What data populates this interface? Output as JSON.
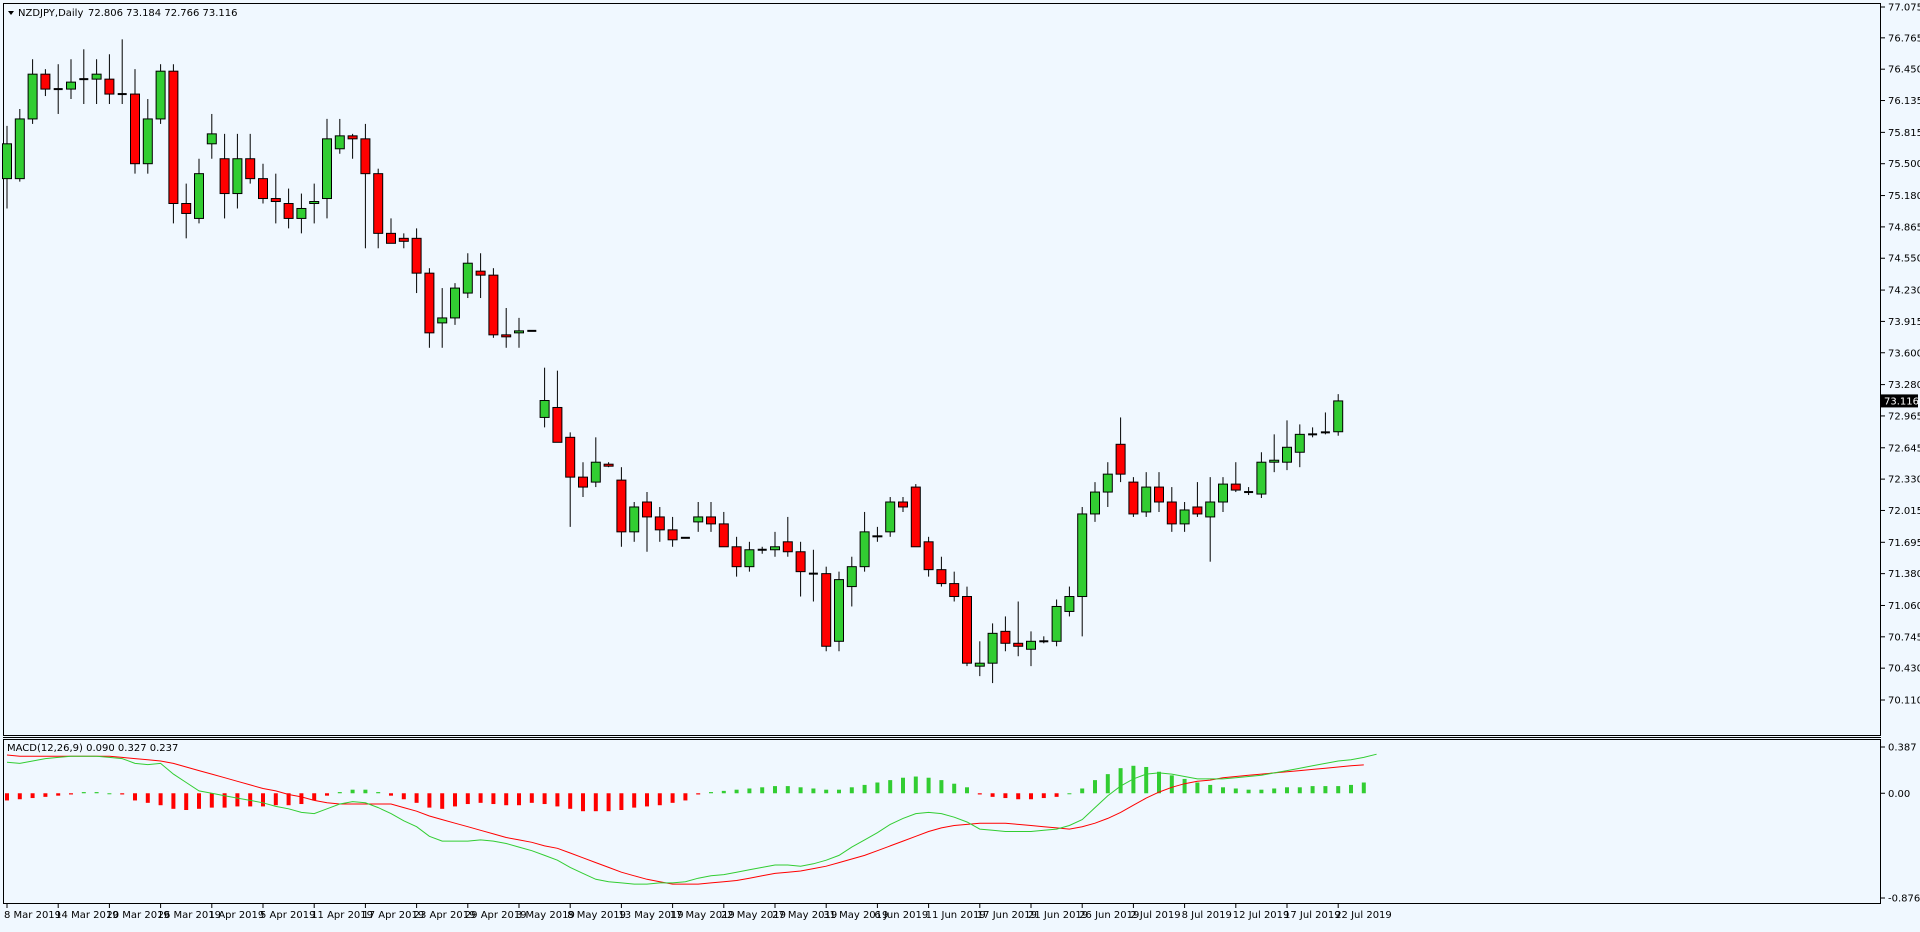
{
  "header": {
    "symbol": "NZDJPY,Daily",
    "ohlc": "72.806 73.184 72.766 73.116"
  },
  "macd_header": {
    "label": "MACD(12,26,9) 0.090 0.327 0.237"
  },
  "colors": {
    "background": "#f0f8ff",
    "bull": "#32cd32",
    "bear": "#ff0000",
    "wick": "#000000",
    "macd_line": "#32cd32",
    "signal_line": "#ff0000",
    "last_price_bg": "#000000"
  },
  "chart_data": [
    {
      "type": "candlestick",
      "title": "NZDJPY,Daily",
      "ylim": [
        70.11,
        77.075
      ],
      "y_ticks": [
        "77.075",
        "76.765",
        "76.450",
        "76.135",
        "75.815",
        "75.500",
        "75.180",
        "74.865",
        "74.550",
        "74.230",
        "73.915",
        "73.600",
        "73.280",
        "72.965",
        "72.645",
        "72.330",
        "72.015",
        "71.695",
        "71.380",
        "71.060",
        "70.745",
        "70.430",
        "70.110"
      ],
      "current_price": "73.116",
      "x_labels": [
        {
          "label": "8 Mar 2019",
          "index": 0
        },
        {
          "label": "14 Mar 2019",
          "index": 4
        },
        {
          "label": "20 Mar 2019",
          "index": 8
        },
        {
          "label": "26 Mar 2019",
          "index": 12
        },
        {
          "label": "1 Apr 2019",
          "index": 16
        },
        {
          "label": "5 Apr 2019",
          "index": 20
        },
        {
          "label": "11 Apr 2019",
          "index": 24
        },
        {
          "label": "17 Apr 2019",
          "index": 28
        },
        {
          "label": "23 Apr 2019",
          "index": 32
        },
        {
          "label": "29 Apr 2019",
          "index": 36
        },
        {
          "label": "3 May 2019",
          "index": 40
        },
        {
          "label": "8 May 2019",
          "index": 44
        },
        {
          "label": "13 May 2019",
          "index": 48
        },
        {
          "label": "17 May 2019",
          "index": 52
        },
        {
          "label": "22 May 2019",
          "index": 56
        },
        {
          "label": "27 May 2019",
          "index": 60
        },
        {
          "label": "31 May 2019",
          "index": 64
        },
        {
          "label": "6 Jun 2019",
          "index": 68
        },
        {
          "label": "11 Jun 2019",
          "index": 72
        },
        {
          "label": "17 Jun 2019",
          "index": 76
        },
        {
          "label": "21 Jun 2019",
          "index": 80
        },
        {
          "label": "26 Jun 2019",
          "index": 84
        },
        {
          "label": "2 Jul 2019",
          "index": 88
        },
        {
          "label": "8 Jul 2019",
          "index": 92
        },
        {
          "label": "12 Jul 2019",
          "index": 96
        },
        {
          "label": "17 Jul 2019",
          "index": 100
        },
        {
          "label": "22 Jul 2019",
          "index": 104
        }
      ],
      "candles": [
        {
          "o": 75.35,
          "h": 75.88,
          "l": 75.05,
          "c": 75.7
        },
        {
          "o": 75.35,
          "h": 76.05,
          "l": 75.32,
          "c": 75.95
        },
        {
          "o": 75.95,
          "h": 76.55,
          "l": 75.9,
          "c": 76.4
        },
        {
          "o": 76.4,
          "h": 76.45,
          "l": 76.18,
          "c": 76.25
        },
        {
          "o": 76.25,
          "h": 76.5,
          "l": 76.0,
          "c": 76.25
        },
        {
          "o": 76.25,
          "h": 76.55,
          "l": 76.15,
          "c": 76.32
        },
        {
          "o": 76.35,
          "h": 76.65,
          "l": 76.1,
          "c": 76.35
        },
        {
          "o": 76.35,
          "h": 76.55,
          "l": 76.1,
          "c": 76.4
        },
        {
          "o": 76.35,
          "h": 76.6,
          "l": 76.1,
          "c": 76.2
        },
        {
          "o": 76.2,
          "h": 76.75,
          "l": 76.1,
          "c": 76.2
        },
        {
          "o": 76.2,
          "h": 76.45,
          "l": 75.4,
          "c": 75.5
        },
        {
          "o": 75.5,
          "h": 76.15,
          "l": 75.4,
          "c": 75.95
        },
        {
          "o": 75.95,
          "h": 76.5,
          "l": 75.9,
          "c": 76.43
        },
        {
          "o": 76.43,
          "h": 76.5,
          "l": 74.9,
          "c": 75.1
        },
        {
          "o": 75.1,
          "h": 75.3,
          "l": 74.75,
          "c": 75.0
        },
        {
          "o": 74.95,
          "h": 75.55,
          "l": 74.9,
          "c": 75.4
        },
        {
          "o": 75.7,
          "h": 76.0,
          "l": 75.55,
          "c": 75.8
        },
        {
          "o": 75.55,
          "h": 75.8,
          "l": 74.95,
          "c": 75.2
        },
        {
          "o": 75.2,
          "h": 75.8,
          "l": 75.05,
          "c": 75.55
        },
        {
          "o": 75.55,
          "h": 75.8,
          "l": 75.3,
          "c": 75.35
        },
        {
          "o": 75.35,
          "h": 75.5,
          "l": 75.1,
          "c": 75.15
        },
        {
          "o": 75.15,
          "h": 75.4,
          "l": 74.9,
          "c": 75.12
        },
        {
          "o": 75.1,
          "h": 75.25,
          "l": 74.85,
          "c": 74.95
        },
        {
          "o": 74.95,
          "h": 75.2,
          "l": 74.8,
          "c": 75.05
        },
        {
          "o": 75.1,
          "h": 75.3,
          "l": 74.9,
          "c": 75.12
        },
        {
          "o": 75.15,
          "h": 75.95,
          "l": 74.95,
          "c": 75.75
        },
        {
          "o": 75.65,
          "h": 75.95,
          "l": 75.6,
          "c": 75.78
        },
        {
          "o": 75.78,
          "h": 75.8,
          "l": 75.55,
          "c": 75.75
        },
        {
          "o": 75.75,
          "h": 75.9,
          "l": 74.65,
          "c": 75.4
        },
        {
          "o": 75.4,
          "h": 75.45,
          "l": 74.65,
          "c": 74.8
        },
        {
          "o": 74.8,
          "h": 74.95,
          "l": 74.7,
          "c": 74.7
        },
        {
          "o": 74.75,
          "h": 74.8,
          "l": 74.65,
          "c": 74.72
        },
        {
          "o": 74.75,
          "h": 74.85,
          "l": 74.2,
          "c": 74.4
        },
        {
          "o": 74.4,
          "h": 74.45,
          "l": 73.65,
          "c": 73.8
        },
        {
          "o": 73.9,
          "h": 74.25,
          "l": 73.65,
          "c": 73.95
        },
        {
          "o": 73.95,
          "h": 74.3,
          "l": 73.88,
          "c": 74.25
        },
        {
          "o": 74.2,
          "h": 74.6,
          "l": 74.15,
          "c": 74.5
        },
        {
          "o": 74.42,
          "h": 74.6,
          "l": 74.15,
          "c": 74.38
        },
        {
          "o": 74.38,
          "h": 74.45,
          "l": 73.75,
          "c": 73.78
        },
        {
          "o": 73.78,
          "h": 74.05,
          "l": 73.65,
          "c": 73.76
        },
        {
          "o": 73.8,
          "h": 73.95,
          "l": 73.65,
          "c": 73.82
        },
        {
          "o": 73.82,
          "h": 73.82,
          "l": 73.82,
          "c": 73.82
        },
        {
          "o": 72.95,
          "h": 73.45,
          "l": 72.85,
          "c": 73.12
        },
        {
          "o": 73.05,
          "h": 73.42,
          "l": 72.7,
          "c": 72.7
        },
        {
          "o": 72.75,
          "h": 72.8,
          "l": 71.85,
          "c": 72.35
        },
        {
          "o": 72.35,
          "h": 72.5,
          "l": 72.15,
          "c": 72.25
        },
        {
          "o": 72.3,
          "h": 72.75,
          "l": 72.25,
          "c": 72.5
        },
        {
          "o": 72.48,
          "h": 72.5,
          "l": 72.45,
          "c": 72.46
        },
        {
          "o": 72.32,
          "h": 72.45,
          "l": 71.65,
          "c": 71.8
        },
        {
          "o": 71.8,
          "h": 72.1,
          "l": 71.7,
          "c": 72.05
        },
        {
          "o": 72.1,
          "h": 72.2,
          "l": 71.6,
          "c": 71.95
        },
        {
          "o": 71.95,
          "h": 72.05,
          "l": 71.7,
          "c": 71.82
        },
        {
          "o": 71.82,
          "h": 71.95,
          "l": 71.65,
          "c": 71.72
        },
        {
          "o": 71.74,
          "h": 71.74,
          "l": 71.74,
          "c": 71.74
        },
        {
          "o": 71.9,
          "h": 72.1,
          "l": 71.8,
          "c": 71.95
        },
        {
          "o": 71.95,
          "h": 72.1,
          "l": 71.8,
          "c": 71.88
        },
        {
          "o": 71.88,
          "h": 72.0,
          "l": 71.65,
          "c": 71.65
        },
        {
          "o": 71.65,
          "h": 71.75,
          "l": 71.35,
          "c": 71.45
        },
        {
          "o": 71.45,
          "h": 71.7,
          "l": 71.4,
          "c": 71.62
        },
        {
          "o": 71.62,
          "h": 71.65,
          "l": 71.58,
          "c": 71.62
        },
        {
          "o": 71.62,
          "h": 71.8,
          "l": 71.55,
          "c": 71.65
        },
        {
          "o": 71.7,
          "h": 71.95,
          "l": 71.55,
          "c": 71.6
        },
        {
          "o": 71.6,
          "h": 71.7,
          "l": 71.15,
          "c": 71.4
        },
        {
          "o": 71.38,
          "h": 71.62,
          "l": 71.1,
          "c": 71.38
        },
        {
          "o": 71.38,
          "h": 71.45,
          "l": 70.6,
          "c": 70.65
        },
        {
          "o": 70.7,
          "h": 71.4,
          "l": 70.6,
          "c": 71.32
        },
        {
          "o": 71.25,
          "h": 71.55,
          "l": 71.05,
          "c": 71.45
        },
        {
          "o": 71.45,
          "h": 72.0,
          "l": 71.4,
          "c": 71.8
        },
        {
          "o": 71.75,
          "h": 71.85,
          "l": 71.7,
          "c": 71.76
        },
        {
          "o": 71.8,
          "h": 72.15,
          "l": 71.75,
          "c": 72.1
        },
        {
          "o": 72.1,
          "h": 72.15,
          "l": 72.0,
          "c": 72.05
        },
        {
          "o": 72.25,
          "h": 72.28,
          "l": 71.65,
          "c": 71.65
        },
        {
          "o": 71.7,
          "h": 71.75,
          "l": 71.35,
          "c": 71.42
        },
        {
          "o": 71.42,
          "h": 71.55,
          "l": 71.25,
          "c": 71.28
        },
        {
          "o": 71.28,
          "h": 71.4,
          "l": 71.1,
          "c": 71.15
        },
        {
          "o": 71.15,
          "h": 71.25,
          "l": 70.45,
          "c": 70.48
        },
        {
          "o": 70.45,
          "h": 70.7,
          "l": 70.35,
          "c": 70.48
        },
        {
          "o": 70.48,
          "h": 70.88,
          "l": 70.28,
          "c": 70.78
        },
        {
          "o": 70.8,
          "h": 70.95,
          "l": 70.6,
          "c": 70.68
        },
        {
          "o": 70.68,
          "h": 71.1,
          "l": 70.55,
          "c": 70.65
        },
        {
          "o": 70.62,
          "h": 70.8,
          "l": 70.45,
          "c": 70.7
        },
        {
          "o": 70.7,
          "h": 70.75,
          "l": 70.68,
          "c": 70.7
        },
        {
          "o": 70.7,
          "h": 71.12,
          "l": 70.65,
          "c": 71.05
        },
        {
          "o": 71.0,
          "h": 71.25,
          "l": 70.95,
          "c": 71.15
        },
        {
          "o": 71.15,
          "h": 72.05,
          "l": 70.75,
          "c": 71.98
        },
        {
          "o": 71.98,
          "h": 72.3,
          "l": 71.9,
          "c": 72.2
        },
        {
          "o": 72.2,
          "h": 72.5,
          "l": 72.05,
          "c": 72.38
        },
        {
          "o": 72.68,
          "h": 72.95,
          "l": 72.3,
          "c": 72.38
        },
        {
          "o": 72.3,
          "h": 72.35,
          "l": 71.95,
          "c": 71.98
        },
        {
          "o": 72.0,
          "h": 72.4,
          "l": 71.95,
          "c": 72.25
        },
        {
          "o": 72.25,
          "h": 72.4,
          "l": 72.0,
          "c": 72.1
        },
        {
          "o": 72.1,
          "h": 72.25,
          "l": 71.8,
          "c": 71.88
        },
        {
          "o": 71.88,
          "h": 72.1,
          "l": 71.8,
          "c": 72.02
        },
        {
          "o": 72.05,
          "h": 72.3,
          "l": 71.95,
          "c": 71.98
        },
        {
          "o": 71.95,
          "h": 72.35,
          "l": 71.5,
          "c": 72.1
        },
        {
          "o": 72.1,
          "h": 72.35,
          "l": 72.0,
          "c": 72.28
        },
        {
          "o": 72.28,
          "h": 72.5,
          "l": 72.2,
          "c": 72.22
        },
        {
          "o": 72.2,
          "h": 72.25,
          "l": 72.17,
          "c": 72.2
        },
        {
          "o": 72.18,
          "h": 72.6,
          "l": 72.14,
          "c": 72.5
        },
        {
          "o": 72.5,
          "h": 72.78,
          "l": 72.4,
          "c": 72.52
        },
        {
          "o": 72.5,
          "h": 72.92,
          "l": 72.42,
          "c": 72.65
        },
        {
          "o": 72.6,
          "h": 72.88,
          "l": 72.45,
          "c": 72.78
        },
        {
          "o": 72.78,
          "h": 72.85,
          "l": 72.75,
          "c": 72.78
        },
        {
          "o": 72.8,
          "h": 73.0,
          "l": 72.78,
          "c": 72.8
        },
        {
          "o": 72.806,
          "h": 73.184,
          "l": 72.766,
          "c": 73.116
        }
      ]
    },
    {
      "type": "macd",
      "title": "MACD(12,26,9) 0.090 0.327 0.237",
      "ylim": [
        -0.876,
        0.387
      ],
      "y_ticks": [
        "0.387",
        "0.00",
        "-0.876"
      ],
      "histogram": [
        -0.06,
        -0.05,
        -0.04,
        -0.03,
        -0.02,
        -0.01,
        0.01,
        0.01,
        0.0,
        -0.01,
        -0.06,
        -0.08,
        -0.1,
        -0.13,
        -0.14,
        -0.13,
        -0.12,
        -0.12,
        -0.11,
        -0.11,
        -0.11,
        -0.1,
        -0.1,
        -0.09,
        -0.06,
        -0.02,
        0.01,
        0.03,
        0.03,
        0.01,
        -0.02,
        -0.05,
        -0.08,
        -0.12,
        -0.13,
        -0.11,
        -0.09,
        -0.08,
        -0.09,
        -0.1,
        -0.1,
        -0.08,
        -0.09,
        -0.11,
        -0.13,
        -0.15,
        -0.15,
        -0.15,
        -0.14,
        -0.12,
        -0.11,
        -0.1,
        -0.08,
        -0.06,
        -0.01,
        0.01,
        0.02,
        0.03,
        0.04,
        0.05,
        0.06,
        0.06,
        0.05,
        0.04,
        0.03,
        0.03,
        0.05,
        0.07,
        0.09,
        0.11,
        0.13,
        0.14,
        0.13,
        0.11,
        0.08,
        0.05,
        -0.01,
        -0.03,
        -0.04,
        -0.05,
        -0.05,
        -0.04,
        -0.03,
        0.0,
        0.04,
        0.11,
        0.16,
        0.21,
        0.23,
        0.22,
        0.18,
        0.15,
        0.12,
        0.09,
        0.07,
        0.05,
        0.04,
        0.03,
        0.03,
        0.04,
        0.05,
        0.05,
        0.06,
        0.06,
        0.06,
        0.07,
        0.09
      ],
      "macd_line": [
        0.26,
        0.25,
        0.27,
        0.29,
        0.3,
        0.31,
        0.31,
        0.31,
        0.3,
        0.29,
        0.25,
        0.24,
        0.25,
        0.16,
        0.09,
        0.02,
        0.0,
        -0.02,
        -0.04,
        -0.06,
        -0.08,
        -0.11,
        -0.13,
        -0.16,
        -0.17,
        -0.13,
        -0.09,
        -0.07,
        -0.08,
        -0.12,
        -0.17,
        -0.23,
        -0.28,
        -0.36,
        -0.4,
        -0.4,
        -0.4,
        -0.39,
        -0.4,
        -0.42,
        -0.45,
        -0.48,
        -0.52,
        -0.56,
        -0.62,
        -0.67,
        -0.72,
        -0.74,
        -0.75,
        -0.76,
        -0.76,
        -0.75,
        -0.75,
        -0.74,
        -0.71,
        -0.69,
        -0.68,
        -0.66,
        -0.64,
        -0.62,
        -0.6,
        -0.6,
        -0.61,
        -0.59,
        -0.56,
        -0.52,
        -0.45,
        -0.39,
        -0.33,
        -0.26,
        -0.21,
        -0.17,
        -0.16,
        -0.17,
        -0.2,
        -0.24,
        -0.3,
        -0.31,
        -0.32,
        -0.32,
        -0.32,
        -0.31,
        -0.3,
        -0.27,
        -0.22,
        -0.12,
        -0.02,
        0.06,
        0.12,
        0.16,
        0.17,
        0.16,
        0.14,
        0.12,
        0.12,
        0.12,
        0.13,
        0.14,
        0.15,
        0.17,
        0.19,
        0.21,
        0.23,
        0.25,
        0.27,
        0.28,
        0.3,
        0.327
      ],
      "signal_line": [
        0.32,
        0.31,
        0.31,
        0.31,
        0.31,
        0.31,
        0.31,
        0.31,
        0.31,
        0.3,
        0.29,
        0.28,
        0.27,
        0.25,
        0.22,
        0.19,
        0.16,
        0.13,
        0.1,
        0.07,
        0.04,
        0.02,
        -0.01,
        -0.03,
        -0.06,
        -0.08,
        -0.09,
        -0.09,
        -0.09,
        -0.09,
        -0.09,
        -0.12,
        -0.15,
        -0.19,
        -0.22,
        -0.25,
        -0.28,
        -0.31,
        -0.34,
        -0.37,
        -0.39,
        -0.41,
        -0.44,
        -0.46,
        -0.5,
        -0.54,
        -0.58,
        -0.62,
        -0.66,
        -0.69,
        -0.72,
        -0.74,
        -0.76,
        -0.76,
        -0.76,
        -0.75,
        -0.74,
        -0.73,
        -0.71,
        -0.69,
        -0.67,
        -0.66,
        -0.65,
        -0.63,
        -0.61,
        -0.58,
        -0.55,
        -0.52,
        -0.48,
        -0.44,
        -0.4,
        -0.36,
        -0.32,
        -0.29,
        -0.27,
        -0.26,
        -0.25,
        -0.25,
        -0.25,
        -0.26,
        -0.27,
        -0.28,
        -0.29,
        -0.3,
        -0.28,
        -0.25,
        -0.21,
        -0.16,
        -0.1,
        -0.04,
        0.01,
        0.05,
        0.08,
        0.1,
        0.11,
        0.13,
        0.14,
        0.15,
        0.16,
        0.17,
        0.18,
        0.19,
        0.2,
        0.21,
        0.22,
        0.23,
        0.237
      ]
    }
  ]
}
